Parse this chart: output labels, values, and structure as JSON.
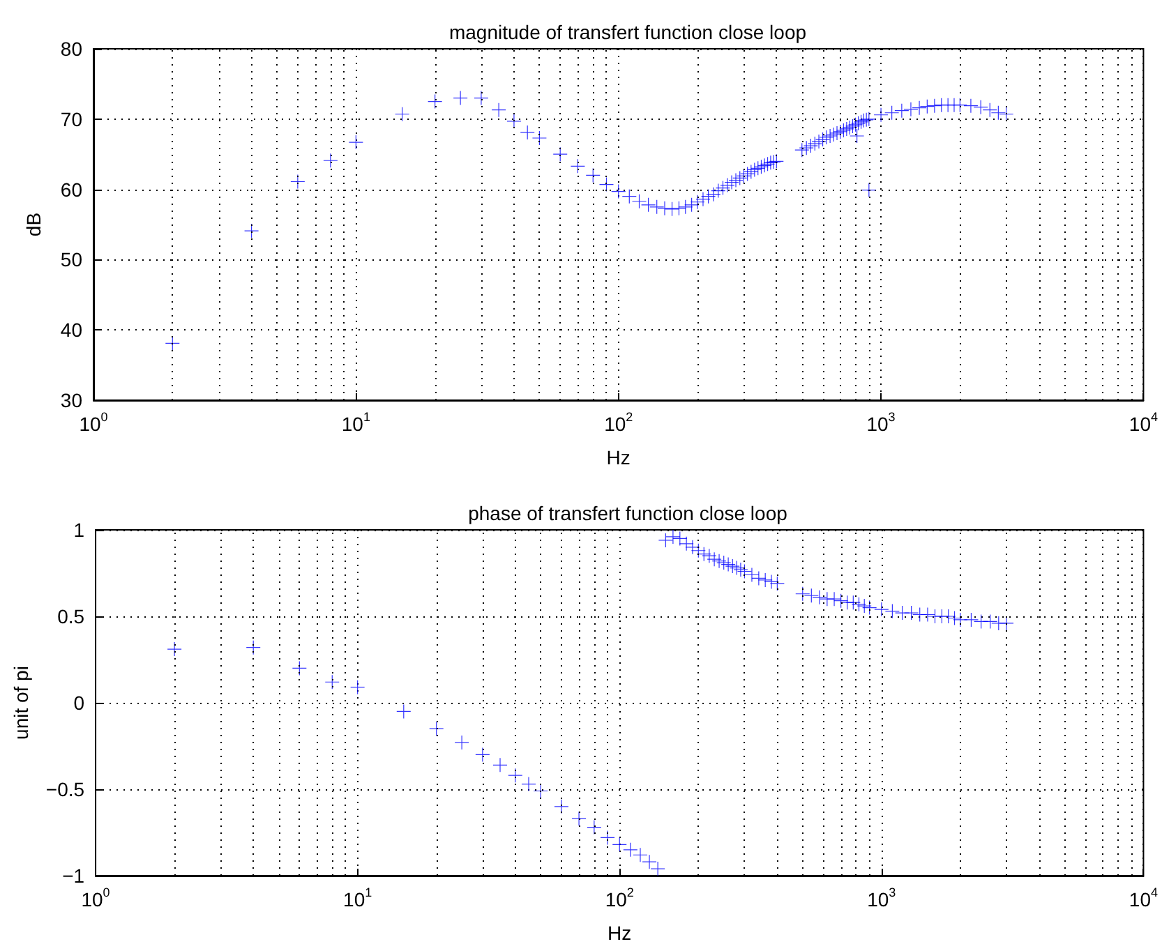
{
  "chart_data": [
    {
      "type": "scatter",
      "title": "magnitude of transfert function close loop",
      "xlabel": "Hz",
      "ylabel": "dB",
      "log": "x",
      "grid": true,
      "marker": "cross",
      "xlim": [
        1,
        10000
      ],
      "xticks": [
        {
          "value": 1,
          "label": "10$^{0}$"
        },
        {
          "value": 10,
          "label": "10$^{1}$"
        },
        {
          "value": 100,
          "label": "10$^{2}$"
        },
        {
          "value": 1000,
          "label": "10$^{3}$"
        },
        {
          "value": 10000,
          "label": "10$^{4}$"
        }
      ],
      "ylim": [
        30,
        80
      ],
      "yticks": [
        30,
        40,
        50,
        60,
        70,
        80
      ],
      "series": [
        {
          "color": "#0000ff",
          "x": [
            2,
            4,
            6,
            8,
            10,
            15,
            20,
            25,
            30,
            35,
            40,
            45,
            50,
            60,
            70,
            80,
            90,
            100,
            110,
            120,
            130,
            140,
            150,
            160,
            170,
            180,
            190,
            200,
            210,
            220,
            230,
            240,
            250,
            260,
            270,
            280,
            290,
            300,
            310,
            320,
            330,
            340,
            350,
            360,
            370,
            380,
            390,
            400,
            500,
            520,
            540,
            560,
            580,
            600,
            620,
            640,
            660,
            680,
            700,
            720,
            740,
            760,
            780,
            800,
            820,
            840,
            860,
            880,
            900,
            810,
            900,
            1000,
            1100,
            1200,
            1300,
            1400,
            1500,
            1600,
            1700,
            1800,
            1900,
            2000,
            2200,
            2400,
            2600,
            2800,
            3000
          ],
          "values": [
            38.1,
            54.1,
            61.1,
            64.1,
            66.7,
            70.7,
            72.5,
            73,
            73,
            71.3,
            69.7,
            68.1,
            67.3,
            65,
            63.3,
            62,
            60.7,
            59.7,
            59,
            58.3,
            57.8,
            57.5,
            57.3,
            57.2,
            57.3,
            57.5,
            57.8,
            58.2,
            58.6,
            59,
            59.3,
            59.8,
            60.2,
            60.6,
            61,
            61.3,
            61.6,
            61.9,
            62.2,
            62.5,
            62.8,
            63,
            63.2,
            63.4,
            63.6,
            63.8,
            63.9,
            64,
            65.6,
            65.9,
            66.2,
            66.5,
            66.8,
            67.1,
            67.4,
            67.6,
            67.8,
            68,
            68.2,
            68.4,
            68.6,
            68.8,
            69,
            69.2,
            69.4,
            69.6,
            69.8,
            69.9,
            70,
            67.6,
            59.9,
            70.6,
            70.9,
            71.2,
            71.4,
            71.6,
            71.8,
            71.9,
            72,
            72,
            72,
            72,
            71.9,
            71.7,
            71.3,
            70.9,
            70.7
          ]
        }
      ]
    },
    {
      "type": "scatter",
      "title": "phase of transfert function close loop",
      "xlabel": "Hz",
      "ylabel": "unit of pi",
      "log": "x",
      "grid": true,
      "marker": "cross",
      "xlim": [
        1,
        10000
      ],
      "xticks": [
        {
          "value": 1,
          "label": "10$^{0}$"
        },
        {
          "value": 10,
          "label": "10$^{1}$"
        },
        {
          "value": 100,
          "label": "10$^{2}$"
        },
        {
          "value": 1000,
          "label": "10$^{3}$"
        },
        {
          "value": 10000,
          "label": "10$^{4}$"
        }
      ],
      "ylim": [
        -1,
        1
      ],
      "yticks": [
        {
          "value": -1,
          "label": "−1"
        },
        {
          "value": -0.5,
          "label": "−0.5"
        },
        0,
        0.5,
        1
      ],
      "series": [
        {
          "color": "#0000ff",
          "x": [
            2,
            4,
            6,
            8,
            10,
            15,
            20,
            25,
            30,
            35,
            40,
            45,
            50,
            60,
            70,
            80,
            90,
            100,
            110,
            120,
            130,
            140,
            150,
            160,
            170,
            180,
            190,
            200,
            210,
            220,
            230,
            240,
            250,
            260,
            270,
            280,
            290,
            300,
            320,
            340,
            360,
            380,
            400,
            500,
            540,
            580,
            620,
            660,
            700,
            740,
            780,
            820,
            860,
            900,
            1000,
            1100,
            1200,
            1300,
            1400,
            1500,
            1600,
            1700,
            1800,
            1900,
            2000,
            2200,
            2400,
            2600,
            2800,
            3000
          ],
          "values": [
            0.31,
            0.32,
            0.2,
            0.12,
            0.09,
            -0.05,
            -0.15,
            -0.23,
            -0.3,
            -0.36,
            -0.42,
            -0.47,
            -0.51,
            -0.6,
            -0.67,
            -0.72,
            -0.78,
            -0.82,
            -0.85,
            -0.88,
            -0.92,
            -0.96,
            0.94,
            0.96,
            0.95,
            0.92,
            0.9,
            0.88,
            0.86,
            0.85,
            0.83,
            0.82,
            0.81,
            0.8,
            0.79,
            0.78,
            0.77,
            0.76,
            0.74,
            0.72,
            0.71,
            0.7,
            0.69,
            0.63,
            0.62,
            0.61,
            0.6,
            0.6,
            0.59,
            0.58,
            0.58,
            0.57,
            0.56,
            0.55,
            0.54,
            0.53,
            0.52,
            0.52,
            0.51,
            0.51,
            0.5,
            0.5,
            0.5,
            0.49,
            0.48,
            0.48,
            0.47,
            0.47,
            0.46,
            0.46
          ]
        }
      ]
    }
  ]
}
